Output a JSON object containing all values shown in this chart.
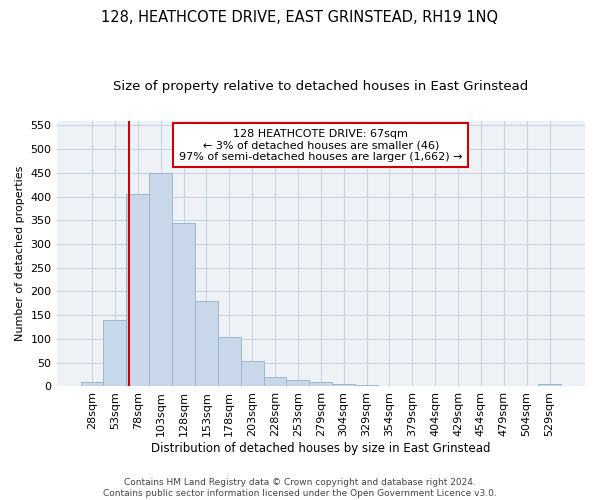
{
  "title": "128, HEATHCOTE DRIVE, EAST GRINSTEAD, RH19 1NQ",
  "subtitle": "Size of property relative to detached houses in East Grinstead",
  "xlabel": "Distribution of detached houses by size in East Grinstead",
  "ylabel": "Number of detached properties",
  "bar_labels": [
    "28sqm",
    "53sqm",
    "78sqm",
    "103sqm",
    "128sqm",
    "153sqm",
    "178sqm",
    "203sqm",
    "228sqm",
    "253sqm",
    "279sqm",
    "304sqm",
    "329sqm",
    "354sqm",
    "379sqm",
    "404sqm",
    "429sqm",
    "454sqm",
    "479sqm",
    "504sqm",
    "529sqm"
  ],
  "bar_values": [
    10,
    140,
    405,
    450,
    345,
    180,
    105,
    53,
    20,
    13,
    10,
    5,
    4,
    0,
    0,
    0,
    0,
    0,
    0,
    0,
    5
  ],
  "bar_color": "#c8d8ea",
  "bar_edge_color": "#9ab8d0",
  "annotation_text_line1": "128 HEATHCOTE DRIVE: 67sqm",
  "annotation_text_line2": "← 3% of detached houses are smaller (46)",
  "annotation_text_line3": "97% of semi-detached houses are larger (1,662) →",
  "vline_x": 1.62,
  "ylim": [
    0,
    560
  ],
  "yticks": [
    0,
    50,
    100,
    150,
    200,
    250,
    300,
    350,
    400,
    450,
    500,
    550
  ],
  "footer_line1": "Contains HM Land Registry data © Crown copyright and database right 2024.",
  "footer_line2": "Contains public sector information licensed under the Open Government Licence v3.0.",
  "background_color": "#eef2f7",
  "title_fontsize": 10.5,
  "subtitle_fontsize": 9.5,
  "annotation_box_color": "#ffffff",
  "annotation_box_edge_color": "#cc0000",
  "vline_color": "#cc0000",
  "grid_color": "#c8d4e0",
  "footer_fontsize": 6.5
}
